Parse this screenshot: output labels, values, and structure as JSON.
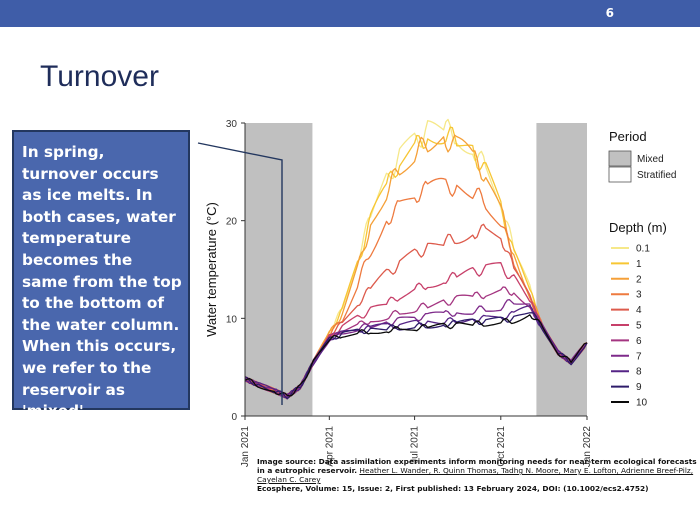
{
  "slide": {
    "number": "6",
    "title": "Turnover",
    "callout": "In spring, turnover occurs as ice melts. In both cases, water temperature becomes the same from the top to the bottom of the water column. When this occurs, we refer to the reservoir as 'mixed'.",
    "source_lead": "Image source: Data assimilation experiments inform monitoring needs for near-term ecological forecasts in a eutrophic reservoir.",
    "source_authors": "Heather L. Wander, R. Quinn Thomas, Tadhg N. Moore, Mary E. Lofton, Adrienne Breef-Pilz, Cayelan C. Carey",
    "source_journal": "Ecosphere, Volume: 15, Issue: 2, First published: 13 February 2024, DOI: (10.1002/ecs2.4752)"
  },
  "chart_data": {
    "type": "line",
    "xlabel": "",
    "ylabel": "Water temperature (°C)",
    "ylim": [
      0,
      30
    ],
    "yticks": [
      0,
      10,
      20,
      30
    ],
    "xlim": [
      "2021-01-01",
      "2022-01-01"
    ],
    "xticks": [
      "Jan 2021",
      "Apr 2021",
      "Jul 2021",
      "Oct 2021",
      "Jan 2022"
    ],
    "xtick_dates": [
      "2021-01-01",
      "2021-04-01",
      "2021-07-01",
      "2021-10-01",
      "2022-01-01"
    ],
    "periods": [
      {
        "name": "Mixed",
        "start": "2021-01-01",
        "end": "2021-03-14",
        "color": "#c0c0c0"
      },
      {
        "name": "Stratified",
        "start": "2021-03-14",
        "end": "2021-11-08",
        "color": "#ffffff"
      },
      {
        "name": "Mixed",
        "start": "2021-11-08",
        "end": "2022-01-01",
        "color": "#c0c0c0"
      }
    ],
    "legend_period_title": "Period",
    "legend_period_entries": [
      {
        "label": "Mixed",
        "color": "#c0c0c0"
      },
      {
        "label": "Stratified",
        "color": "#ffffff"
      }
    ],
    "legend_depth_title": "Depth (m)",
    "legend_placement": "right",
    "x": [
      "2021-01-01",
      "2021-01-15",
      "2021-02-01",
      "2021-02-15",
      "2021-03-01",
      "2021-03-15",
      "2021-04-01",
      "2021-04-15",
      "2021-05-01",
      "2021-05-15",
      "2021-06-01",
      "2021-06-15",
      "2021-07-01",
      "2021-07-15",
      "2021-08-01",
      "2021-08-15",
      "2021-09-01",
      "2021-09-15",
      "2021-10-01",
      "2021-10-15",
      "2021-11-01",
      "2021-11-15",
      "2021-12-01",
      "2021-12-15",
      "2022-01-01"
    ],
    "series": [
      {
        "name": "0.1",
        "color": "#f6e889",
        "values": [
          3.8,
          3.2,
          2.6,
          2.0,
          3.0,
          5.5,
          8.5,
          11,
          16,
          20.5,
          24,
          26.5,
          28,
          29.2,
          29.5,
          28.8,
          27.5,
          25.5,
          22,
          17,
          13,
          9,
          6.5,
          5.5,
          7.5
        ]
      },
      {
        "name": "1",
        "color": "#f7c634",
        "values": [
          3.8,
          3.2,
          2.6,
          2.0,
          3.0,
          5.5,
          8.5,
          10.8,
          15.5,
          20,
          23.5,
          26,
          27.5,
          28.7,
          29,
          28.3,
          27,
          25,
          21.5,
          16.5,
          12.8,
          9,
          6.5,
          5.5,
          7.5
        ]
      },
      {
        "name": "2",
        "color": "#f5a038",
        "values": [
          3.8,
          3.2,
          2.6,
          2.0,
          3.0,
          5.5,
          8.4,
          10.5,
          15,
          19.5,
          23,
          25.5,
          27,
          28,
          28.3,
          27.7,
          26.5,
          24.5,
          21,
          16.5,
          12.5,
          9,
          6.5,
          5.5,
          7.5
        ]
      },
      {
        "name": "3",
        "color": "#ee7a3f",
        "values": [
          3.8,
          3.2,
          2.6,
          2.0,
          3.0,
          5.5,
          8.3,
          10,
          13.5,
          17,
          20,
          21.5,
          22.5,
          23.3,
          23.5,
          23.3,
          23,
          22,
          20,
          16,
          12.3,
          9,
          6.5,
          5.5,
          7.5
        ]
      },
      {
        "name": "4",
        "color": "#dd5b4c",
        "values": [
          3.8,
          3.2,
          2.6,
          2.0,
          3.0,
          5.5,
          8.2,
          9.5,
          11.5,
          13,
          14.5,
          15.5,
          16.5,
          17.2,
          17.8,
          18.3,
          18.8,
          19,
          18.5,
          15,
          12,
          9,
          6.5,
          5.5,
          7.5
        ]
      },
      {
        "name": "5",
        "color": "#c7406a",
        "values": [
          3.8,
          3.2,
          2.6,
          2.0,
          3.0,
          5.5,
          8.1,
          9,
          10,
          10.8,
          11.5,
          12.3,
          13,
          13.5,
          14,
          14.3,
          14.7,
          15,
          15.2,
          14,
          11.8,
          9,
          6.5,
          5.5,
          7.5
        ]
      },
      {
        "name": "6",
        "color": "#a43581",
        "values": [
          3.8,
          3.2,
          2.6,
          2.0,
          3.0,
          5.5,
          8,
          8.8,
          9.3,
          9.8,
          10.2,
          10.6,
          11,
          11.3,
          11.6,
          11.9,
          12.2,
          12.5,
          12.8,
          12.8,
          11.5,
          9,
          6.5,
          5.5,
          7.5
        ]
      },
      {
        "name": "7",
        "color": "#7e2a8a",
        "values": [
          3.8,
          3.2,
          2.6,
          2.0,
          3.0,
          5.5,
          7.9,
          8.6,
          9,
          9.3,
          9.5,
          9.8,
          10,
          10.2,
          10.4,
          10.6,
          10.8,
          11,
          11.2,
          11.8,
          11.3,
          9,
          6.5,
          5.5,
          7.5
        ]
      },
      {
        "name": "8",
        "color": "#552486",
        "values": [
          3.8,
          3.2,
          2.6,
          2.0,
          3.0,
          5.5,
          7.9,
          8.5,
          8.8,
          9,
          9.2,
          9.3,
          9.5,
          9.6,
          9.7,
          9.8,
          9.9,
          10,
          10.1,
          10.4,
          11,
          9,
          6.5,
          5.5,
          7.5
        ]
      },
      {
        "name": "9",
        "color": "#2e1c6a",
        "values": [
          3.8,
          3.2,
          2.6,
          2.0,
          3.0,
          5.5,
          7.8,
          8.4,
          8.6,
          8.8,
          9,
          9.1,
          9.2,
          9.3,
          9.4,
          9.5,
          9.6,
          9.7,
          9.8,
          10,
          10.8,
          9,
          6.5,
          5.5,
          7.5
        ]
      },
      {
        "name": "10",
        "color": "#0a0a0a",
        "values": [
          3.8,
          3.2,
          2.6,
          2.0,
          3.0,
          5.5,
          7.8,
          8.3,
          8.5,
          8.7,
          8.8,
          8.9,
          9,
          9.1,
          9.2,
          9.3,
          9.4,
          9.5,
          9.6,
          9.8,
          10.6,
          9,
          6.5,
          5.5,
          7.5
        ]
      }
    ]
  }
}
